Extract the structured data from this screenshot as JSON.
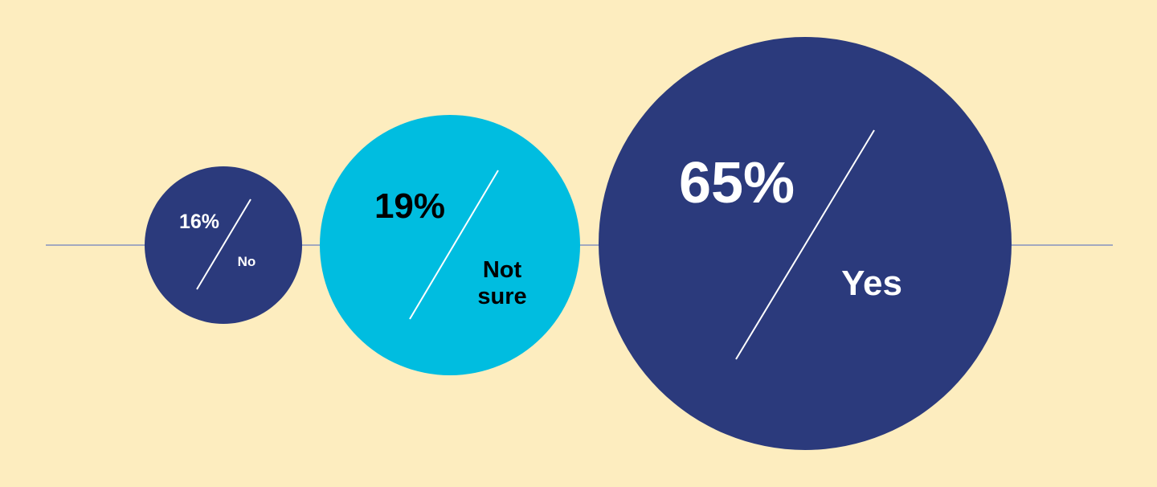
{
  "chart_data": {
    "type": "bubble",
    "categories": [
      "No",
      "Not sure",
      "Yes"
    ],
    "values": [
      16,
      19,
      65
    ],
    "value_labels": [
      "16%",
      "19%",
      "65%"
    ],
    "unit": "%",
    "colors": {
      "background": "#fdedbf",
      "navy": "#2b3a7c",
      "cyan": "#00bde0",
      "baseline": "#a3a9bf"
    },
    "bubble_colors": [
      "#2b3a7c",
      "#00bde0",
      "#2b3a7c"
    ],
    "text_colors": [
      "#ffffff",
      "#000000",
      "#ffffff"
    ]
  }
}
